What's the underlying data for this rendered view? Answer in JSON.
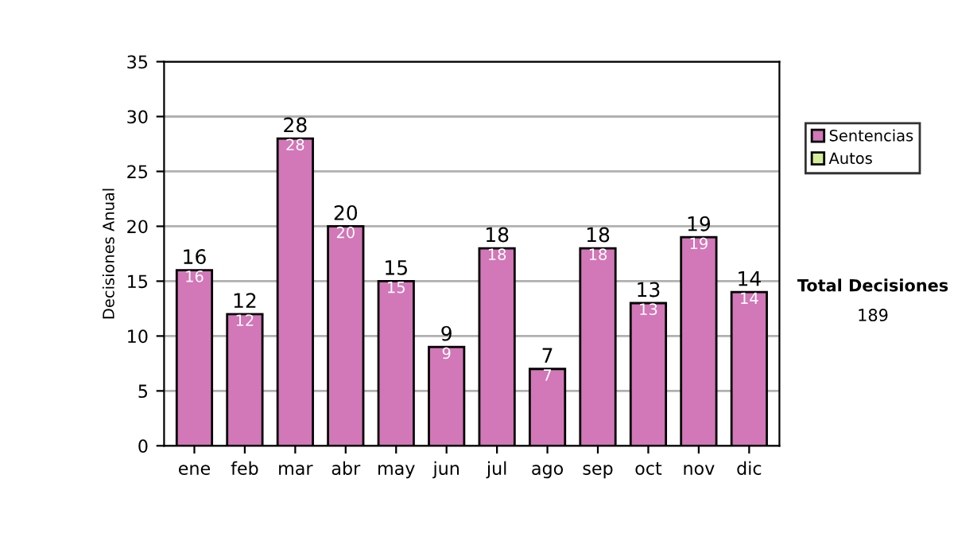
{
  "chart_data": {
    "type": "bar",
    "ylabel": "Decisiones Anual",
    "categories": [
      "ene",
      "feb",
      "mar",
      "abr",
      "may",
      "jun",
      "jul",
      "ago",
      "sep",
      "oct",
      "nov",
      "dic"
    ],
    "series": [
      {
        "name": "Sentencias",
        "color": "#d277b8",
        "values": [
          16,
          12,
          28,
          20,
          15,
          9,
          18,
          7,
          18,
          13,
          19,
          14
        ]
      },
      {
        "name": "Autos",
        "color": "#d6ee9c",
        "values": [
          null,
          null,
          null,
          null,
          null,
          null,
          null,
          null,
          null,
          null,
          null,
          null
        ]
      }
    ],
    "stacked": true,
    "data_labels": true,
    "totals": [
      "16",
      "12",
      "28",
      "20",
      "15",
      "9",
      "18",
      "7",
      "18",
      "13",
      "19",
      "14"
    ],
    "ylim": [
      0,
      35
    ],
    "yticks": [
      0,
      5,
      10,
      15,
      20,
      25,
      30,
      35
    ],
    "grid": "y",
    "legend": "right",
    "annotations": [
      "Total Decisiones",
      "189"
    ]
  }
}
